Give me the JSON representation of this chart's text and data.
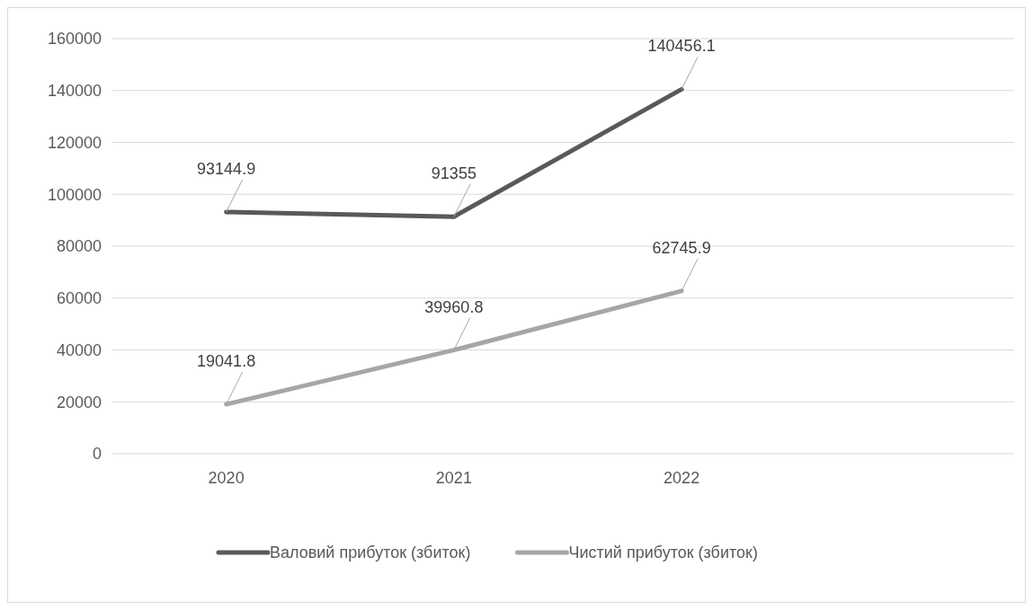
{
  "chart_data": {
    "type": "line",
    "categories": [
      "2020",
      "2021",
      "2022",
      null
    ],
    "series": [
      {
        "name": "Валовий прибуток (збиток)",
        "color": "#595959",
        "values": [
          93144.9,
          91355,
          140456.1,
          null
        ]
      },
      {
        "name": "Чистий прибуток (збиток)",
        "color": "#a6a6a6",
        "values": [
          19041.8,
          39960.8,
          62745.9,
          null
        ]
      }
    ],
    "ylim": [
      0,
      160000
    ],
    "yticks": [
      0,
      20000,
      40000,
      60000,
      80000,
      100000,
      120000,
      140000,
      160000
    ],
    "grid": "y",
    "legend": "bottom",
    "data_labels": true,
    "marker": "none",
    "line_style": "solid"
  }
}
